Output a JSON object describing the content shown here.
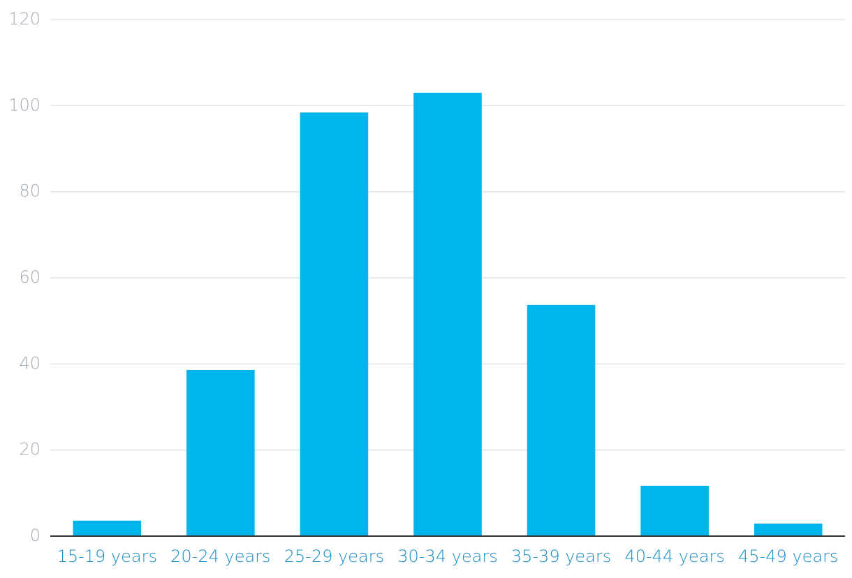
{
  "chart_data": {
    "type": "bar",
    "categories": [
      "15-19 years",
      "20-24 years",
      "25-29 years",
      "30-34 years",
      "35-39 years",
      "40-44 years",
      "45-49 years"
    ],
    "values": [
      3.6,
      38.6,
      98.4,
      103.0,
      53.7,
      11.7,
      2.9
    ],
    "color": "#00b4ec",
    "ylim": [
      0,
      120
    ],
    "yticks": [
      0,
      20,
      40,
      60,
      80,
      100,
      120
    ],
    "grid": true
  }
}
